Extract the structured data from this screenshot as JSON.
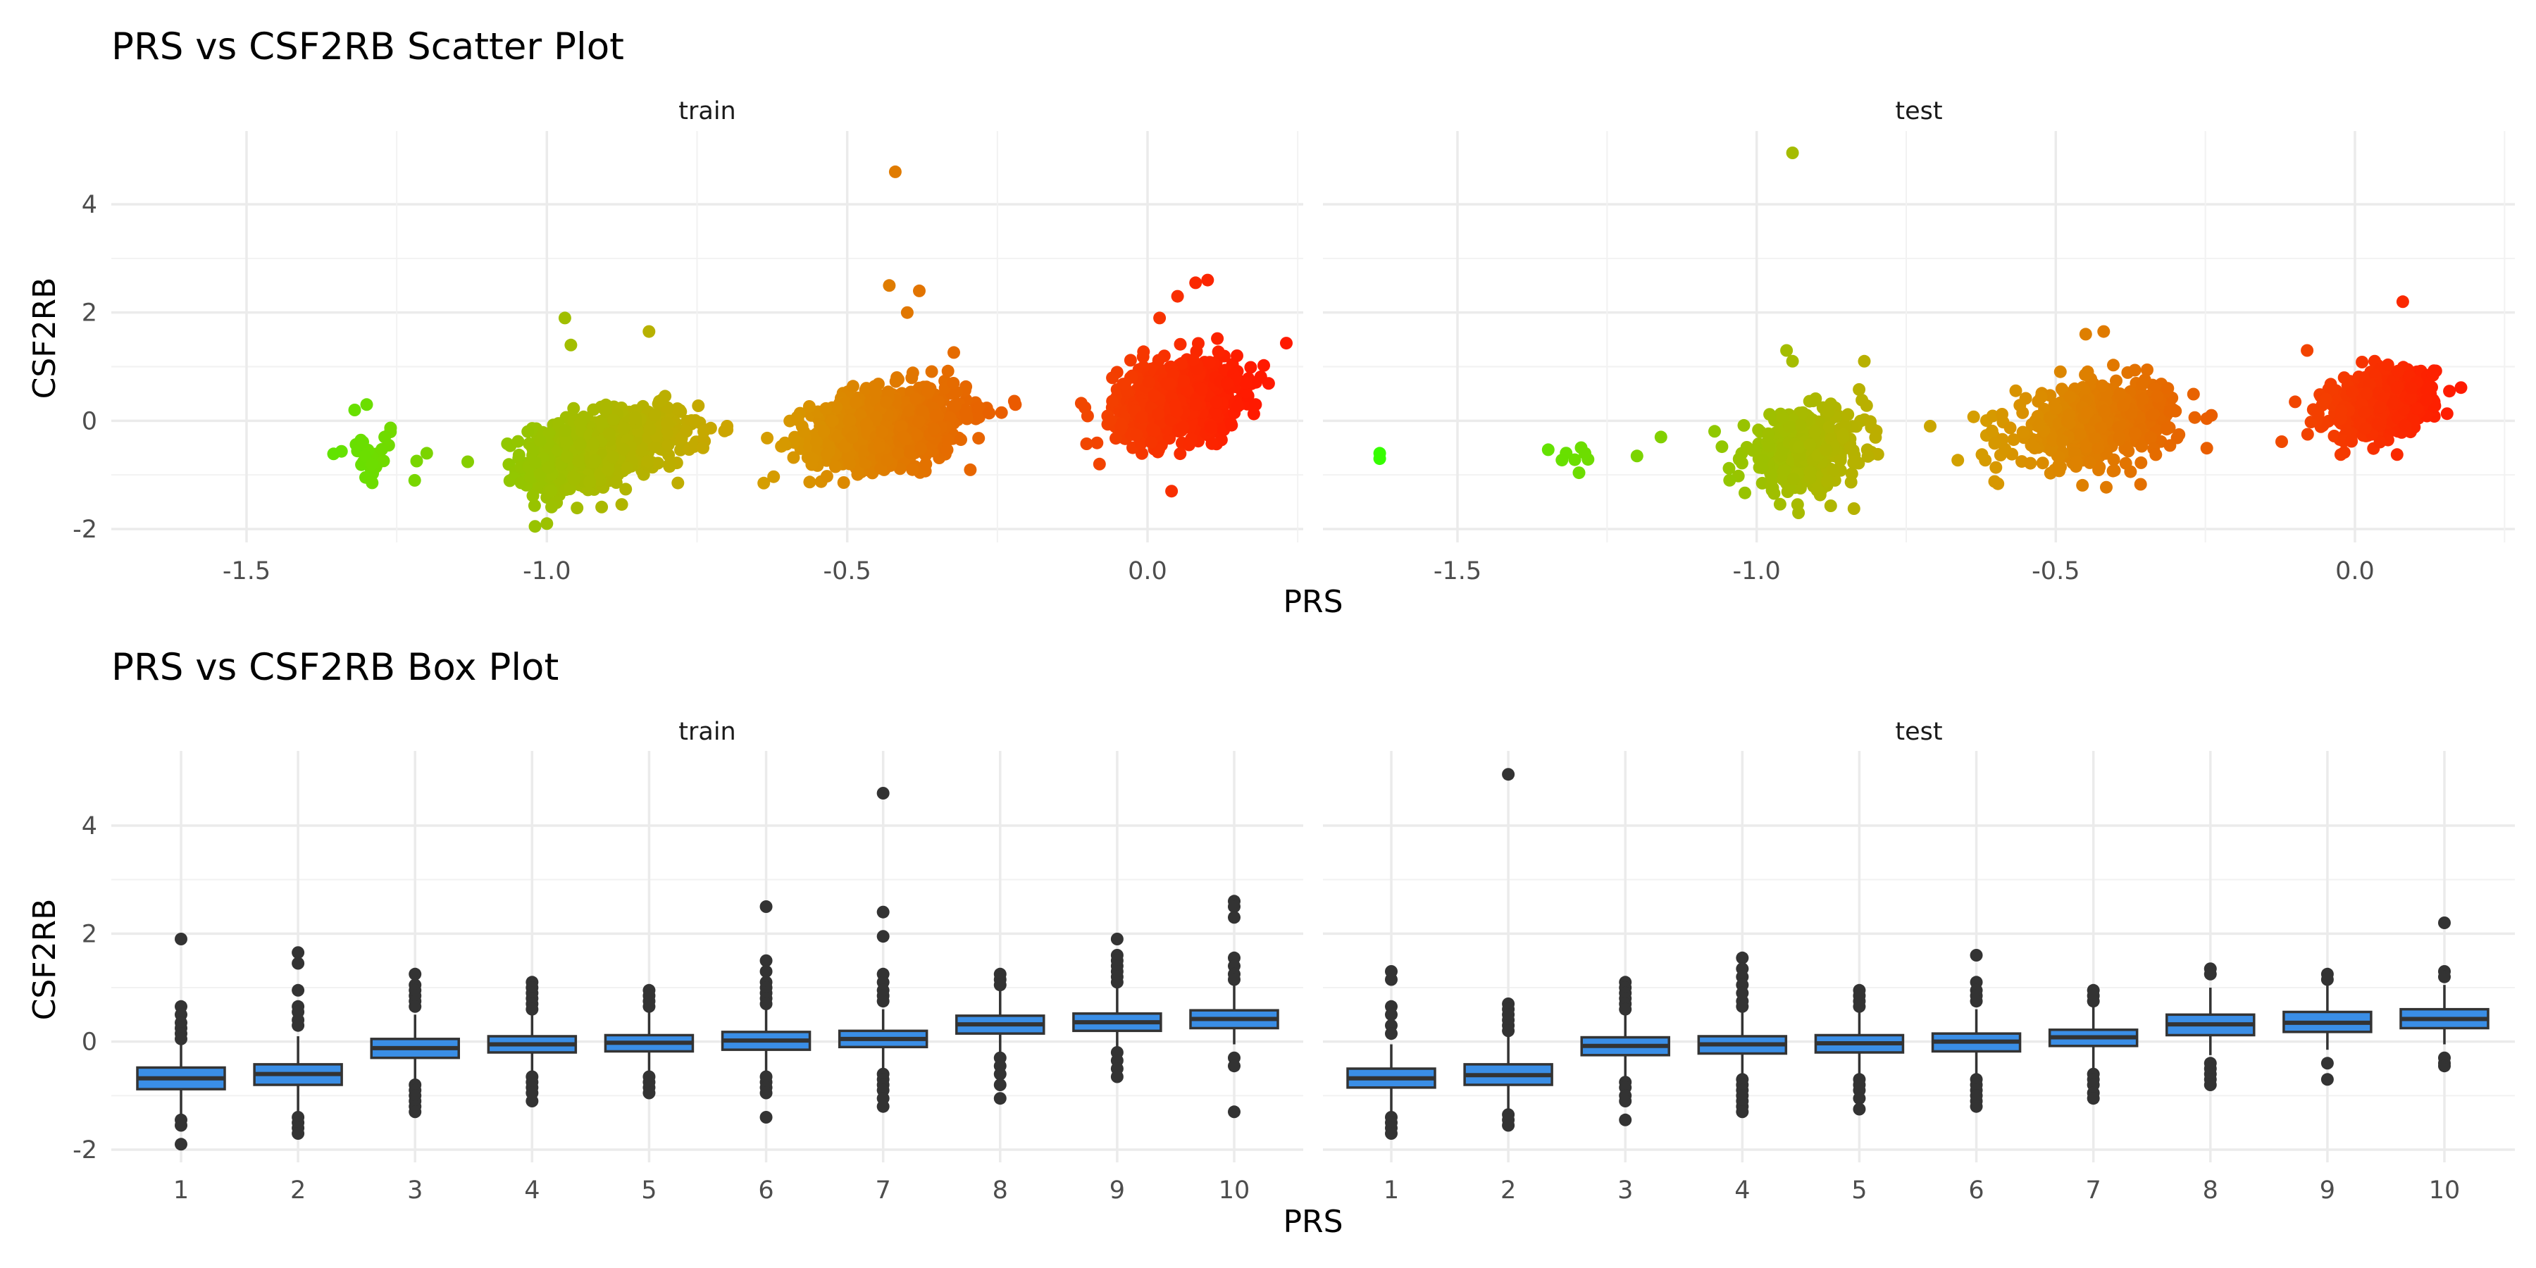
{
  "plots": [
    {
      "id": "scatter",
      "title": "PRS vs CSF2RB Scatter Plot",
      "xlabel": "PRS",
      "ylabel": "CSF2RB"
    },
    {
      "id": "box",
      "title": "PRS vs CSF2RB Box Plot",
      "xlabel": "PRS",
      "ylabel": "CSF2RB"
    }
  ],
  "chart_data": [
    {
      "type": "scatter",
      "title": "PRS vs CSF2RB Scatter Plot",
      "xlabel": "PRS",
      "ylabel": "CSF2RB",
      "facets": [
        "train",
        "test"
      ],
      "xlim": [
        -1.65,
        0.17
      ],
      "xlim_test": [
        -1.65,
        0.17
      ],
      "ylim": [
        -2.0,
        5.0
      ],
      "x_ticks": [
        "-1.5",
        "-1.0",
        "-0.5",
        "0.0"
      ],
      "x_tick_values": [
        -1.5,
        -1.0,
        -0.5,
        0.0
      ],
      "y_ticks": [
        "-2",
        "0",
        "2",
        "4"
      ],
      "y_tick_values": [
        -2,
        0,
        2,
        4
      ],
      "color_scale": {
        "low": "#33ff00",
        "mid": "#d4a000",
        "high": "#ff1a00",
        "variable": "PRS"
      },
      "grid": true,
      "clusters": {
        "train": [
          {
            "x_center": -1.3,
            "x_sd": 0.03,
            "y_center": -0.65,
            "y_sd": 0.3,
            "n": 25
          },
          {
            "x_center": -0.95,
            "x_sd": 0.045,
            "y_center": -0.65,
            "y_sd": 0.35,
            "n": 520
          },
          {
            "x_center": -0.85,
            "x_sd": 0.05,
            "y_center": -0.35,
            "y_sd": 0.3,
            "n": 260
          },
          {
            "x_center": -0.43,
            "x_sd": 0.065,
            "y_center": -0.1,
            "y_sd": 0.35,
            "n": 850
          },
          {
            "x_center": 0.05,
            "x_sd": 0.05,
            "y_center": 0.4,
            "y_sd": 0.35,
            "n": 850
          }
        ],
        "test": [
          {
            "x_center": -1.3,
            "x_sd": 0.04,
            "y_center": -0.6,
            "y_sd": 0.15,
            "n": 8
          },
          {
            "x_center": -0.92,
            "x_sd": 0.05,
            "y_center": -0.55,
            "y_sd": 0.35,
            "n": 420
          },
          {
            "x_center": -0.43,
            "x_sd": 0.07,
            "y_center": -0.05,
            "y_sd": 0.35,
            "n": 480
          },
          {
            "x_center": 0.04,
            "x_sd": 0.045,
            "y_center": 0.3,
            "y_sd": 0.3,
            "n": 480
          }
        ]
      },
      "outliers": {
        "train": [
          {
            "x": -0.42,
            "y": 4.6
          },
          {
            "x": -0.43,
            "y": 2.5
          },
          {
            "x": -0.4,
            "y": 2.0
          },
          {
            "x": -0.38,
            "y": 2.4
          },
          {
            "x": -0.97,
            "y": 1.9
          },
          {
            "x": -0.96,
            "y": 1.4
          },
          {
            "x": -0.83,
            "y": 1.65
          },
          {
            "x": -1.0,
            "y": -1.9
          },
          {
            "x": 0.1,
            "y": 2.6
          },
          {
            "x": 0.08,
            "y": 2.55
          },
          {
            "x": 0.05,
            "y": 2.3
          },
          {
            "x": 0.02,
            "y": 1.9
          },
          {
            "x": 0.04,
            "y": -1.3
          },
          {
            "x": -0.08,
            "y": -0.8
          },
          {
            "x": -1.22,
            "y": -1.1
          },
          {
            "x": -1.2,
            "y": -0.6
          },
          {
            "x": -1.27,
            "y": -0.3
          },
          {
            "x": -0.7,
            "y": -0.1
          },
          {
            "x": -0.74,
            "y": -0.5
          },
          {
            "x": -0.22,
            "y": 0.3
          },
          {
            "x": -1.32,
            "y": 0.2
          },
          {
            "x": -1.3,
            "y": 0.3
          }
        ],
        "test": [
          {
            "x": -0.94,
            "y": 4.95
          },
          {
            "x": -1.63,
            "y": -0.6
          },
          {
            "x": -1.63,
            "y": -0.7
          },
          {
            "x": -1.16,
            "y": -0.3
          },
          {
            "x": -1.2,
            "y": -0.65
          },
          {
            "x": -0.95,
            "y": 1.3
          },
          {
            "x": -0.94,
            "y": 1.1
          },
          {
            "x": -0.82,
            "y": 1.1
          },
          {
            "x": 0.08,
            "y": 2.2
          },
          {
            "x": -0.45,
            "y": 1.6
          },
          {
            "x": -0.42,
            "y": 1.65
          },
          {
            "x": -0.93,
            "y": -1.7
          },
          {
            "x": -0.71,
            "y": -0.1
          },
          {
            "x": -0.24,
            "y": 0.1
          },
          {
            "x": -0.1,
            "y": 0.35
          },
          {
            "x": -0.08,
            "y": 1.3
          }
        ]
      }
    },
    {
      "type": "box",
      "title": "PRS vs CSF2RB Box Plot",
      "xlabel": "PRS",
      "ylabel": "CSF2RB",
      "facets": [
        "train",
        "test"
      ],
      "categories": [
        "1",
        "2",
        "3",
        "4",
        "5",
        "6",
        "7",
        "8",
        "9",
        "10"
      ],
      "ylim": [
        -2.0,
        5.0
      ],
      "y_ticks": [
        "-2",
        "0",
        "2",
        "4"
      ],
      "y_tick_values": [
        -2,
        0,
        2,
        4
      ],
      "box_fill": "#3a8ee6",
      "grid": true,
      "series": [
        {
          "name": "train",
          "boxes": [
            {
              "q1": -0.88,
              "median": -0.68,
              "q3": -0.48,
              "lower": -1.35,
              "upper": -0.05,
              "outliers": [
                1.9,
                0.65,
                0.5,
                0.35,
                0.25,
                0.15,
                0.05,
                -1.45,
                -1.55,
                -1.9
              ]
            },
            {
              "q1": -0.8,
              "median": -0.6,
              "q3": -0.42,
              "lower": -1.3,
              "upper": 0.1,
              "outliers": [
                1.65,
                1.45,
                0.95,
                0.65,
                0.55,
                0.4,
                0.3,
                -1.4,
                -1.5,
                -1.6,
                -1.7
              ]
            },
            {
              "q1": -0.3,
              "median": -0.12,
              "q3": 0.05,
              "lower": -0.7,
              "upper": 0.5,
              "outliers": [
                1.25,
                1.05,
                0.95,
                0.85,
                0.75,
                0.65,
                -0.8,
                -0.9,
                -1.0,
                -1.1,
                -1.2,
                -1.3
              ]
            },
            {
              "q1": -0.2,
              "median": -0.05,
              "q3": 0.1,
              "lower": -0.6,
              "upper": 0.55,
              "outliers": [
                1.1,
                1.0,
                0.9,
                0.8,
                0.7,
                0.6,
                -0.65,
                -0.75,
                -0.85,
                -0.95,
                -1.1
              ]
            },
            {
              "q1": -0.18,
              "median": -0.02,
              "q3": 0.12,
              "lower": -0.6,
              "upper": 0.55,
              "outliers": [
                0.95,
                0.85,
                0.75,
                0.65,
                -0.65,
                -0.75,
                -0.85,
                -0.95
              ]
            },
            {
              "q1": -0.15,
              "median": 0.02,
              "q3": 0.18,
              "lower": -0.6,
              "upper": 0.6,
              "outliers": [
                2.5,
                1.5,
                1.3,
                1.1,
                1.0,
                0.9,
                0.8,
                0.7,
                -0.65,
                -0.75,
                -0.85,
                -0.95,
                -1.4
              ]
            },
            {
              "q1": -0.1,
              "median": 0.05,
              "q3": 0.2,
              "lower": -0.55,
              "upper": 0.6,
              "outliers": [
                4.6,
                2.4,
                1.95,
                1.25,
                1.1,
                0.95,
                0.85,
                0.75,
                -0.6,
                -0.7,
                -0.8,
                -0.9,
                -1.05,
                -1.2
              ]
            },
            {
              "q1": 0.15,
              "median": 0.32,
              "q3": 0.48,
              "lower": -0.2,
              "upper": 0.95,
              "outliers": [
                1.25,
                1.15,
                1.05,
                -0.3,
                -0.45,
                -0.6,
                -0.8,
                -1.05
              ]
            },
            {
              "q1": 0.2,
              "median": 0.36,
              "q3": 0.52,
              "lower": -0.1,
              "upper": 1.0,
              "outliers": [
                1.9,
                1.6,
                1.5,
                1.4,
                1.3,
                1.2,
                1.1,
                -0.2,
                -0.35,
                -0.5,
                -0.65
              ]
            },
            {
              "q1": 0.25,
              "median": 0.42,
              "q3": 0.58,
              "lower": -0.05,
              "upper": 1.05,
              "outliers": [
                2.6,
                2.5,
                2.3,
                1.55,
                1.4,
                1.25,
                1.15,
                -0.3,
                -0.45,
                -1.3
              ]
            }
          ]
        },
        {
          "name": "test",
          "boxes": [
            {
              "q1": -0.85,
              "median": -0.68,
              "q3": -0.5,
              "lower": -1.3,
              "upper": -0.05,
              "outliers": [
                1.3,
                1.15,
                0.65,
                0.5,
                0.3,
                0.15,
                -1.4,
                -1.5,
                -1.6,
                -1.7
              ]
            },
            {
              "q1": -0.8,
              "median": -0.62,
              "q3": -0.42,
              "lower": -1.25,
              "upper": 0.1,
              "outliers": [
                4.95,
                0.7,
                0.6,
                0.5,
                0.4,
                0.3,
                0.2,
                -1.35,
                -1.45,
                -1.55
              ]
            },
            {
              "q1": -0.25,
              "median": -0.08,
              "q3": 0.08,
              "lower": -0.7,
              "upper": 0.5,
              "outliers": [
                1.1,
                1.0,
                0.9,
                0.8,
                0.7,
                0.6,
                -0.75,
                -0.85,
                -1.0,
                -1.1,
                -1.45
              ]
            },
            {
              "q1": -0.22,
              "median": -0.05,
              "q3": 0.1,
              "lower": -0.65,
              "upper": 0.55,
              "outliers": [
                1.55,
                1.35,
                1.2,
                1.05,
                0.9,
                0.75,
                0.65,
                -0.7,
                -0.8,
                -0.9,
                -1.0,
                -1.1,
                -1.2,
                -1.3
              ]
            },
            {
              "q1": -0.2,
              "median": -0.03,
              "q3": 0.12,
              "lower": -0.65,
              "upper": 0.55,
              "outliers": [
                0.95,
                0.85,
                0.75,
                0.65,
                -0.7,
                -0.8,
                -0.9,
                -1.05,
                -1.25
              ]
            },
            {
              "q1": -0.18,
              "median": 0.0,
              "q3": 0.15,
              "lower": -0.6,
              "upper": 0.6,
              "outliers": [
                1.6,
                1.1,
                0.95,
                0.85,
                0.75,
                -0.7,
                -0.8,
                -0.9,
                -1.0,
                -1.1,
                -1.2
              ]
            },
            {
              "q1": -0.08,
              "median": 0.08,
              "q3": 0.22,
              "lower": -0.5,
              "upper": 0.65,
              "outliers": [
                0.95,
                0.85,
                0.75,
                -0.6,
                -0.7,
                -0.8,
                -0.95,
                -1.05
              ]
            },
            {
              "q1": 0.12,
              "median": 0.32,
              "q3": 0.5,
              "lower": -0.25,
              "upper": 1.0,
              "outliers": [
                1.35,
                1.25,
                -0.4,
                -0.5,
                -0.6,
                -0.7,
                -0.8
              ]
            },
            {
              "q1": 0.18,
              "median": 0.35,
              "q3": 0.55,
              "lower": -0.15,
              "upper": 1.05,
              "outliers": [
                1.25,
                1.15,
                -0.4,
                -0.7
              ]
            },
            {
              "q1": 0.25,
              "median": 0.42,
              "q3": 0.6,
              "lower": -0.05,
              "upper": 1.05,
              "outliers": [
                2.2,
                1.3,
                1.2,
                -0.3,
                -0.4,
                -0.45
              ]
            }
          ]
        }
      ]
    }
  ]
}
